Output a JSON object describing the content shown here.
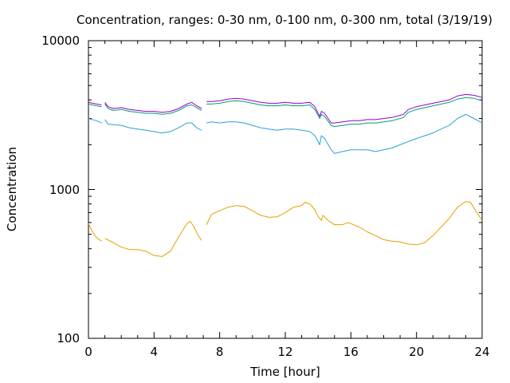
{
  "chart_data": {
    "type": "line",
    "title": "Concentration, ranges: 0-30 nm, 0-100 nm, 0-300 nm, total (3/19/19)",
    "xlabel": "Time [hour]",
    "ylabel": "Concentration",
    "xlim": [
      0,
      24
    ],
    "ylim": [
      100,
      10000
    ],
    "yscale": "log",
    "grid": false,
    "legend": "none",
    "x_ticks": [
      "0",
      "4",
      "8",
      "12",
      "16",
      "20",
      "24"
    ],
    "y_ticks": [
      "100",
      "1000",
      "10000"
    ],
    "colors": {
      "0-30 nm": "#e69f00",
      "0-100 nm": "#2aa0d8",
      "0-300 nm": "#009e73",
      "total": "#9400d3"
    },
    "series": [
      {
        "key": "0-30 nm",
        "segments": [
          [
            [
              0,
              590
            ],
            [
              0.2,
              530
            ],
            [
              0.4,
              490
            ],
            [
              0.6,
              465
            ],
            [
              0.8,
              450
            ]
          ],
          [
            [
              1.0,
              470
            ],
            [
              1.5,
              440
            ],
            [
              2.0,
              410
            ],
            [
              2.5,
              395
            ],
            [
              3.0,
              395
            ],
            [
              3.5,
              385
            ],
            [
              4.0,
              360
            ],
            [
              4.5,
              355
            ],
            [
              5.0,
              385
            ],
            [
              5.5,
              480
            ],
            [
              6.0,
              590
            ],
            [
              6.2,
              610
            ],
            [
              6.4,
              570
            ],
            [
              6.7,
              490
            ],
            [
              6.9,
              455
            ]
          ],
          [
            [
              7.2,
              580
            ],
            [
              7.5,
              680
            ],
            [
              8.0,
              720
            ],
            [
              8.5,
              760
            ],
            [
              9.0,
              780
            ],
            [
              9.5,
              770
            ],
            [
              10.0,
              720
            ],
            [
              10.5,
              670
            ],
            [
              11.0,
              650
            ],
            [
              11.5,
              655
            ],
            [
              12.0,
              700
            ],
            [
              12.5,
              760
            ],
            [
              13.0,
              780
            ],
            [
              13.2,
              820
            ],
            [
              13.5,
              800
            ],
            [
              13.8,
              730
            ],
            [
              14.0,
              660
            ],
            [
              14.2,
              620
            ],
            [
              14.3,
              670
            ],
            [
              14.6,
              620
            ],
            [
              15.0,
              580
            ],
            [
              15.5,
              580
            ],
            [
              15.8,
              600
            ],
            [
              16.0,
              590
            ],
            [
              16.5,
              560
            ],
            [
              17.0,
              520
            ],
            [
              17.5,
              490
            ],
            [
              18.0,
              460
            ],
            [
              18.5,
              450
            ],
            [
              19.0,
              445
            ],
            [
              19.5,
              430
            ],
            [
              20.0,
              425
            ],
            [
              20.5,
              440
            ],
            [
              21.0,
              490
            ],
            [
              21.5,
              560
            ],
            [
              22.0,
              640
            ],
            [
              22.5,
              760
            ],
            [
              23.0,
              830
            ],
            [
              23.3,
              820
            ],
            [
              23.6,
              720
            ],
            [
              24.0,
              620
            ]
          ]
        ]
      },
      {
        "key": "0-100 nm",
        "segments": [
          [
            [
              0,
              3000
            ],
            [
              0.5,
              2900
            ],
            [
              0.8,
              2800
            ]
          ],
          [
            [
              1.0,
              2950
            ],
            [
              1.2,
              2750
            ],
            [
              2.0,
              2700
            ],
            [
              2.5,
              2600
            ],
            [
              3.0,
              2550
            ],
            [
              3.5,
              2500
            ],
            [
              4.0,
              2450
            ],
            [
              4.5,
              2400
            ],
            [
              5.0,
              2450
            ],
            [
              5.5,
              2600
            ],
            [
              6.0,
              2800
            ],
            [
              6.3,
              2800
            ],
            [
              6.6,
              2600
            ],
            [
              6.9,
              2500
            ]
          ],
          [
            [
              7.2,
              2800
            ],
            [
              7.5,
              2850
            ],
            [
              8.0,
              2800
            ],
            [
              8.5,
              2850
            ],
            [
              9.0,
              2850
            ],
            [
              9.5,
              2800
            ],
            [
              10.0,
              2700
            ],
            [
              10.5,
              2600
            ],
            [
              11.0,
              2550
            ],
            [
              11.5,
              2500
            ],
            [
              12.0,
              2550
            ],
            [
              12.5,
              2550
            ],
            [
              13.0,
              2500
            ],
            [
              13.5,
              2450
            ],
            [
              13.8,
              2300
            ],
            [
              14.1,
              2000
            ],
            [
              14.2,
              2300
            ],
            [
              14.4,
              2200
            ],
            [
              14.8,
              1850
            ],
            [
              15.0,
              1750
            ],
            [
              15.5,
              1800
            ],
            [
              16.0,
              1850
            ],
            [
              17.0,
              1850
            ],
            [
              17.5,
              1800
            ],
            [
              18.0,
              1850
            ],
            [
              18.5,
              1900
            ],
            [
              19.0,
              2000
            ],
            [
              19.5,
              2100
            ],
            [
              20.0,
              2200
            ],
            [
              21.0,
              2400
            ],
            [
              22.0,
              2700
            ],
            [
              22.5,
              3000
            ],
            [
              23.0,
              3200
            ],
            [
              23.5,
              3000
            ],
            [
              24.0,
              2800
            ]
          ]
        ]
      },
      {
        "key": "0-300 nm",
        "segments": [
          [
            [
              0,
              3750
            ],
            [
              0.5,
              3650
            ],
            [
              0.8,
              3600
            ]
          ],
          [
            [
              1.0,
              3750
            ],
            [
              1.2,
              3500
            ],
            [
              1.5,
              3400
            ],
            [
              2.0,
              3450
            ],
            [
              2.5,
              3350
            ],
            [
              3.0,
              3300
            ],
            [
              3.5,
              3250
            ],
            [
              4.0,
              3250
            ],
            [
              4.5,
              3200
            ],
            [
              5.0,
              3250
            ],
            [
              5.5,
              3400
            ],
            [
              6.0,
              3650
            ],
            [
              6.3,
              3700
            ],
            [
              6.6,
              3550
            ],
            [
              6.9,
              3400
            ]
          ],
          [
            [
              7.2,
              3750
            ],
            [
              7.5,
              3750
            ],
            [
              8.0,
              3800
            ],
            [
              8.5,
              3900
            ],
            [
              9.0,
              3950
            ],
            [
              9.5,
              3900
            ],
            [
              10.0,
              3800
            ],
            [
              10.5,
              3700
            ],
            [
              11.0,
              3650
            ],
            [
              11.5,
              3650
            ],
            [
              12.0,
              3700
            ],
            [
              12.5,
              3650
            ],
            [
              13.0,
              3650
            ],
            [
              13.5,
              3700
            ],
            [
              13.8,
              3450
            ],
            [
              14.1,
              3000
            ],
            [
              14.2,
              3200
            ],
            [
              14.4,
              3100
            ],
            [
              14.8,
              2700
            ],
            [
              15.0,
              2650
            ],
            [
              15.5,
              2700
            ],
            [
              16.0,
              2750
            ],
            [
              16.5,
              2750
            ],
            [
              17.0,
              2800
            ],
            [
              17.5,
              2800
            ],
            [
              18.0,
              2850
            ],
            [
              18.5,
              2900
            ],
            [
              19.0,
              3000
            ],
            [
              19.2,
              3050
            ],
            [
              19.5,
              3300
            ],
            [
              20.0,
              3450
            ],
            [
              21.0,
              3650
            ],
            [
              22.0,
              3850
            ],
            [
              22.5,
              4050
            ],
            [
              23.0,
              4150
            ],
            [
              23.5,
              4100
            ],
            [
              24.0,
              3950
            ]
          ]
        ]
      },
      {
        "key": "total",
        "segments": [
          [
            [
              0,
              3850
            ],
            [
              0.5,
              3750
            ],
            [
              0.8,
              3700
            ]
          ],
          [
            [
              1.0,
              3850
            ],
            [
              1.2,
              3600
            ],
            [
              1.5,
              3500
            ],
            [
              2.0,
              3550
            ],
            [
              2.5,
              3450
            ],
            [
              3.0,
              3400
            ],
            [
              3.5,
              3350
            ],
            [
              4.0,
              3350
            ],
            [
              4.5,
              3300
            ],
            [
              5.0,
              3350
            ],
            [
              5.5,
              3500
            ],
            [
              6.0,
              3750
            ],
            [
              6.3,
              3850
            ],
            [
              6.6,
              3650
            ],
            [
              6.9,
              3500
            ]
          ],
          [
            [
              7.2,
              3900
            ],
            [
              7.5,
              3900
            ],
            [
              8.0,
              3950
            ],
            [
              8.5,
              4050
            ],
            [
              9.0,
              4100
            ],
            [
              9.5,
              4050
            ],
            [
              10.0,
              3950
            ],
            [
              10.5,
              3850
            ],
            [
              11.0,
              3800
            ],
            [
              11.5,
              3800
            ],
            [
              12.0,
              3850
            ],
            [
              12.5,
              3800
            ],
            [
              13.0,
              3800
            ],
            [
              13.5,
              3850
            ],
            [
              13.8,
              3600
            ],
            [
              14.1,
              3100
            ],
            [
              14.2,
              3350
            ],
            [
              14.4,
              3250
            ],
            [
              14.8,
              2800
            ],
            [
              15.0,
              2800
            ],
            [
              15.5,
              2850
            ],
            [
              16.0,
              2900
            ],
            [
              16.5,
              2900
            ],
            [
              17.0,
              2950
            ],
            [
              17.5,
              2950
            ],
            [
              18.0,
              3000
            ],
            [
              18.5,
              3050
            ],
            [
              19.0,
              3150
            ],
            [
              19.2,
              3200
            ],
            [
              19.5,
              3450
            ],
            [
              20.0,
              3600
            ],
            [
              21.0,
              3800
            ],
            [
              22.0,
              4000
            ],
            [
              22.5,
              4250
            ],
            [
              23.0,
              4350
            ],
            [
              23.5,
              4300
            ],
            [
              24.0,
              4150
            ]
          ]
        ]
      }
    ]
  }
}
